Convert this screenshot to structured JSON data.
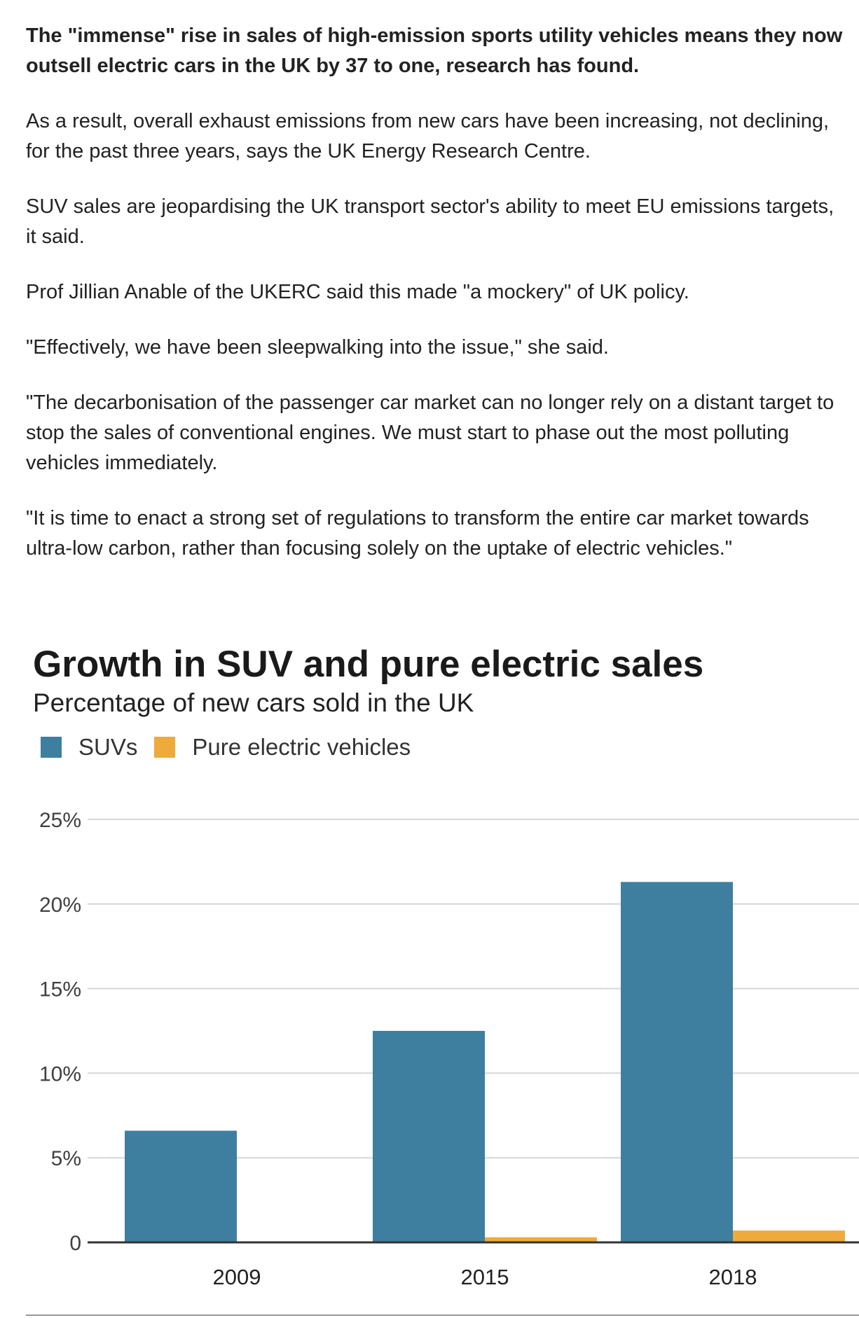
{
  "article": {
    "intro": "The \"immense\" rise in sales of high-emission sports utility vehicles means they now outsell electric cars in the UK by 37 to one, research has found.",
    "paragraphs": [
      "As a result, overall exhaust emissions from new cars have been increasing, not declining, for the past three years, says the UK Energy Research Centre.",
      "SUV sales are jeopardising the UK transport sector's ability to meet EU emissions targets, it said.",
      "Prof Jillian Anable of the UKERC said this made \"a mockery\" of UK policy.",
      "\"Effectively, we have been sleepwalking into the issue,\" she said.",
      "\"The decarbonisation of the passenger car market can no longer rely on a distant target to stop the sales of conventional engines. We must start to phase out the most polluting vehicles immediately.",
      "\"It is time to enact a strong set of regulations to transform the entire car market towards ultra-low carbon, rather than focusing solely on the uptake of electric vehicles.\""
    ]
  },
  "colors": {
    "suv": "#3e7f9f",
    "electric": "#eeab3c",
    "grid": "#d6d6d6",
    "axis": "#333333"
  },
  "chart_data": {
    "type": "bar",
    "title": "Growth in SUV and pure electric sales",
    "subtitle": "Percentage of new cars sold in the UK",
    "categories": [
      "2009",
      "2015",
      "2018"
    ],
    "series": [
      {
        "name": "SUVs",
        "values": [
          6.6,
          12.5,
          21.3
        ]
      },
      {
        "name": "Pure electric vehicles",
        "values": [
          0.0,
          0.3,
          0.7
        ]
      }
    ],
    "yticks": [
      0,
      5,
      10,
      15,
      20,
      25
    ],
    "ytick_labels": [
      "0",
      "5%",
      "10%",
      "15%",
      "20%",
      "25%"
    ],
    "ylim": [
      0,
      25
    ],
    "xlabel": "",
    "ylabel": "",
    "grid": true,
    "legend_position": "top-left"
  }
}
